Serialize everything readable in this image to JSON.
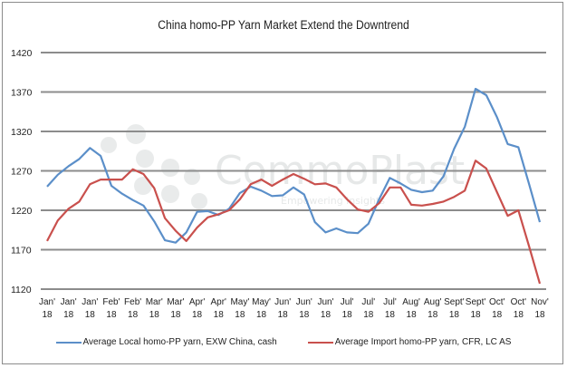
{
  "chart_data": {
    "type": "line",
    "title": "China homo-PP Yarn Market Extend the Downtrend",
    "xlabel": "",
    "ylabel": "",
    "ylim": [
      1120,
      1420
    ],
    "yticks": [
      1120,
      1170,
      1220,
      1270,
      1320,
      1370,
      1420
    ],
    "grid": true,
    "legend_position": "bottom",
    "x_tick_labels": [
      [
        "Jan'",
        "18"
      ],
      [
        "Jan'",
        "18"
      ],
      [
        "Jan'",
        "18"
      ],
      [
        "Feb'",
        "18"
      ],
      [
        "Feb'",
        "18"
      ],
      [
        "Mar'",
        "18"
      ],
      [
        "Mar'",
        "18"
      ],
      [
        "Apr'",
        "18"
      ],
      [
        "Apr'",
        "18"
      ],
      [
        "May'",
        "18"
      ],
      [
        "May'",
        "18"
      ],
      [
        "Jun'",
        "18"
      ],
      [
        "Jun'",
        "18"
      ],
      [
        "Jul'",
        "18"
      ],
      [
        "Jul'",
        "18"
      ],
      [
        "Jul'",
        "18"
      ],
      [
        "Aug'",
        "18"
      ],
      [
        "Aug'",
        "18"
      ],
      [
        "Sept'",
        "18"
      ],
      [
        "Sept'",
        "18"
      ],
      [
        "Oct'",
        "18"
      ],
      [
        "Oct'",
        "18"
      ],
      [
        "Nov'",
        "18"
      ]
    ],
    "x_tick_labels_extra": [
      [
        "Jun'",
        "18"
      ]
    ],
    "series": [
      {
        "name": "Average Local homo-PP yarn, EXW China, cash",
        "color": "#5b8fc9",
        "values": [
          1250,
          1265,
          1276,
          1285,
          1299,
          1289,
          1251,
          1241,
          1233,
          1226,
          1206,
          1182,
          1179,
          1192,
          1218,
          1219,
          1214,
          1222,
          1242,
          1250,
          1245,
          1238,
          1239,
          1249,
          1240,
          1205,
          1192,
          1197,
          1192,
          1191,
          1203,
          1234,
          1261,
          1254,
          1246,
          1243,
          1245,
          1263,
          1298,
          1326,
          1374,
          1366,
          1338,
          1304,
          1300,
          1253,
          1205
        ]
      },
      {
        "name": "Average Import homo-PP yarn, CFR, LC AS",
        "color": "#c9504d",
        "values": [
          1181,
          1207,
          1222,
          1231,
          1253,
          1259,
          1259,
          1259,
          1272,
          1266,
          1248,
          1210,
          1194,
          1181,
          1198,
          1211,
          1215,
          1220,
          1234,
          1253,
          1259,
          1251,
          1259,
          1266,
          1260,
          1253,
          1254,
          1249,
          1234,
          1221,
          1218,
          1229,
          1249,
          1249,
          1227,
          1226,
          1228,
          1231,
          1237,
          1245,
          1283,
          1273,
          1243,
          1213,
          1220,
          1174,
          1127
        ]
      }
    ]
  },
  "watermark": {
    "brand": "CommoPlast",
    "tagline": "Empowering insights"
  },
  "colors": {
    "grid": "#8c8c8c",
    "frame": "#8c8c8c"
  }
}
